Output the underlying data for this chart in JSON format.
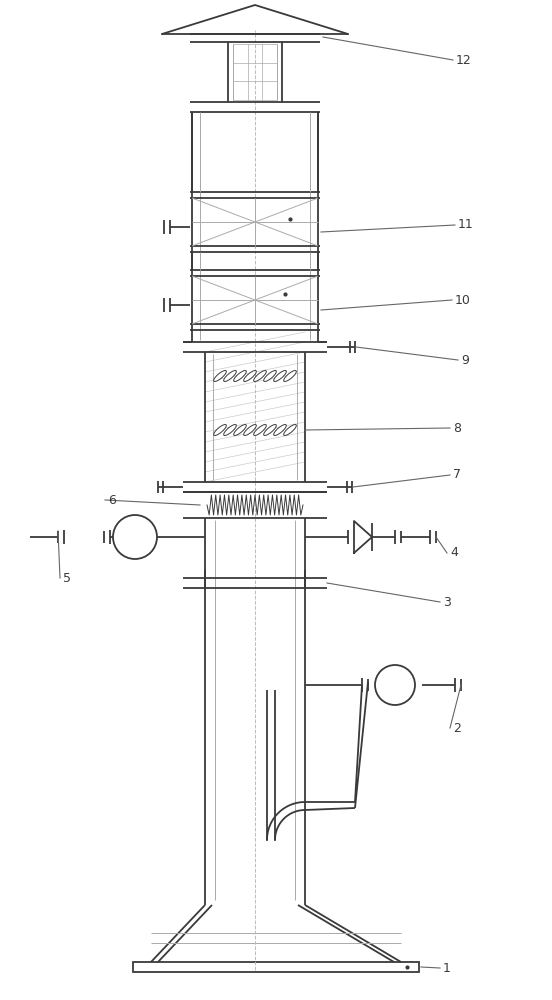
{
  "bg_color": "#ffffff",
  "line_color": "#3a3a3a",
  "light_line_color": "#aaaaaa",
  "annotation_color": "#666666",
  "figsize": [
    5.52,
    10.0
  ],
  "dpi": 100
}
